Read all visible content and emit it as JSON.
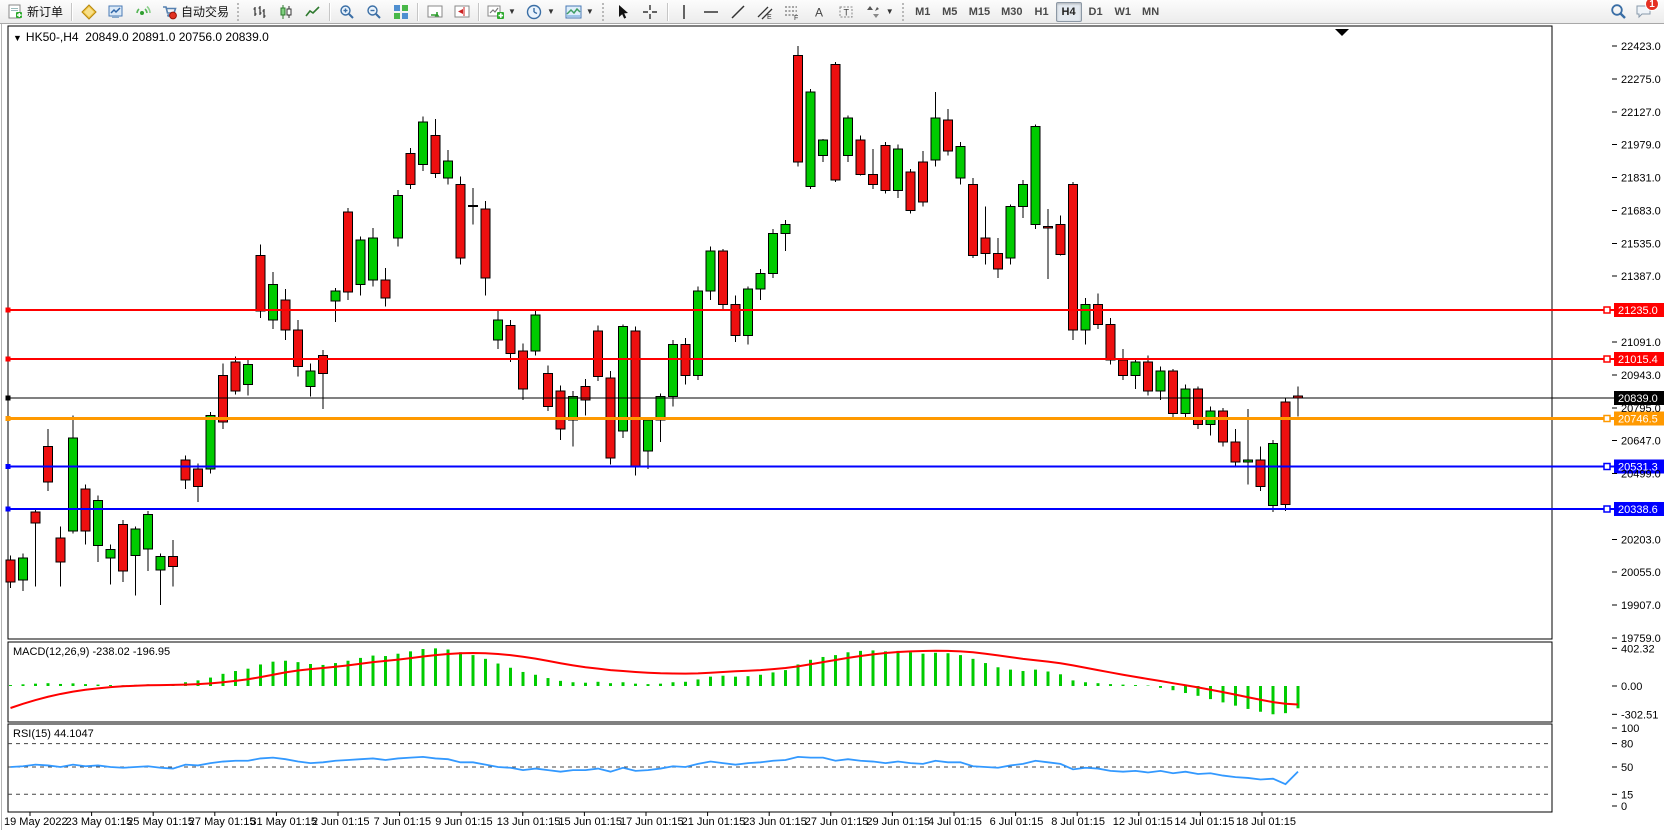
{
  "toolbar": {
    "new_order_label": "新订单",
    "auto_trading_label": "自动交易",
    "timeframes": [
      "M1",
      "M5",
      "M15",
      "M30",
      "H1",
      "H4",
      "D1",
      "W1",
      "MN"
    ],
    "active_timeframe": "H4",
    "notifications_badge": "1"
  },
  "chart": {
    "header_text": "HK50-,H4  20849.0 20891.0 20756.0 20839.0",
    "macd_label": "MACD(12,26,9) -238.02 -196.95",
    "rsi_label": "RSI(15) 44.1047"
  },
  "chart_data": {
    "type": "candlestick",
    "symbol": "HK50-",
    "timeframe": "H4",
    "current_bar": {
      "open": 20849.0,
      "high": 20891.0,
      "low": 20756.0,
      "close": 20839.0
    },
    "colors": {
      "bull": "#00cb00",
      "bear": "#ee1010",
      "wick": "#000000",
      "macd_hist": "#00cb00",
      "macd_signal": "#ff0000",
      "rsi": "#3399ff"
    },
    "ylim": [
      19754,
      22513
    ],
    "price_ticks": [
      22423.0,
      22275.0,
      22127.0,
      21979.0,
      21831.0,
      21683.0,
      21535.0,
      21387.0,
      21091.0,
      20943.0,
      20795.0,
      20647.0,
      20499.0,
      20203.0,
      20055.0,
      19907.0,
      19759.0
    ],
    "horizontal_lines": [
      {
        "price": 21235.0,
        "color": "#ff0000",
        "width": 2,
        "label": "21235.0"
      },
      {
        "price": 21015.4,
        "color": "#ff0000",
        "width": 2,
        "label": "21015.4"
      },
      {
        "price": 20839.0,
        "color": "#000000",
        "width": 1,
        "label": "20839.0"
      },
      {
        "price": 20746.5,
        "color": "#ff9900",
        "width": 3,
        "label": "20746.5"
      },
      {
        "price": 20531.3,
        "color": "#0000ff",
        "width": 2,
        "label": "20531.3"
      },
      {
        "price": 20338.6,
        "color": "#0000ff",
        "width": 2,
        "label": "20338.6"
      }
    ],
    "time_labels": [
      "19 May 2022",
      "23 May 01:15",
      "25 May 01:15",
      "27 May 01:15",
      "31 May 01:15",
      "2 Jun 01:15",
      "7 Jun 01:15",
      "9 Jun 01:15",
      "13 Jun 01:15",
      "15 Jun 01:15",
      "17 Jun 01:15",
      "21 Jun 01:15",
      "23 Jun 01:15",
      "27 Jun 01:15",
      "29 Jun 01:15",
      "4 Jul 01:15",
      "6 Jul 01:15",
      "8 Jul 01:15",
      "12 Jul 01:15",
      "14 Jul 01:15",
      "18 Jul 01:15"
    ],
    "candles": [
      [
        20110,
        20130,
        19985,
        20010
      ],
      [
        20020,
        20140,
        19970,
        20120
      ],
      [
        20326,
        20340,
        19990,
        20277
      ],
      [
        20620,
        20700,
        20420,
        20460
      ],
      [
        20210,
        20260,
        19990,
        20100
      ],
      [
        20240,
        20760,
        20230,
        20660
      ],
      [
        20430,
        20450,
        20180,
        20240
      ],
      [
        20175,
        20400,
        20100,
        20378
      ],
      [
        20120,
        20180,
        20000,
        20157
      ],
      [
        20270,
        20290,
        20010,
        20060
      ],
      [
        20130,
        20260,
        19950,
        20250
      ],
      [
        20160,
        20330,
        20060,
        20315
      ],
      [
        20065,
        20140,
        19907,
        20125
      ],
      [
        20125,
        20200,
        19990,
        20080
      ],
      [
        20560,
        20580,
        20430,
        20470
      ],
      [
        20520,
        20545,
        20370,
        20440
      ],
      [
        20520,
        20775,
        20500,
        20760
      ],
      [
        20940,
        20995,
        20700,
        20730
      ],
      [
        21000,
        21025,
        20855,
        20870
      ],
      [
        20900,
        21015,
        20850,
        20990
      ],
      [
        21480,
        21530,
        21200,
        21230
      ],
      [
        21190,
        21405,
        21150,
        21350
      ],
      [
        21280,
        21330,
        21100,
        21145
      ],
      [
        21145,
        21190,
        20935,
        20980
      ],
      [
        20890,
        20995,
        20845,
        20960
      ],
      [
        21030,
        21055,
        20790,
        20950
      ],
      [
        21275,
        21335,
        21180,
        21320
      ],
      [
        21675,
        21695,
        21280,
        21315
      ],
      [
        21350,
        21565,
        21300,
        21550
      ],
      [
        21370,
        21605,
        21340,
        21560
      ],
      [
        21370,
        21425,
        21250,
        21290
      ],
      [
        21560,
        21775,
        21520,
        21750
      ],
      [
        21940,
        21965,
        21780,
        21800
      ],
      [
        21890,
        22105,
        21860,
        22080
      ],
      [
        22020,
        22095,
        21830,
        21850
      ],
      [
        21830,
        21955,
        21800,
        21905
      ],
      [
        21800,
        21835,
        21440,
        21470
      ],
      [
        21700,
        21785,
        21620,
        21705
      ],
      [
        21690,
        21725,
        21300,
        21380
      ],
      [
        21100,
        21235,
        21060,
        21190
      ],
      [
        21165,
        21190,
        21000,
        21040
      ],
      [
        21050,
        21085,
        20830,
        20880
      ],
      [
        21050,
        21240,
        21030,
        21213
      ],
      [
        20950,
        20985,
        20780,
        20800
      ],
      [
        20870,
        20895,
        20650,
        20700
      ],
      [
        20740,
        20870,
        20620,
        20845
      ],
      [
        20890,
        20925,
        20760,
        20830
      ],
      [
        21140,
        21165,
        20915,
        20935
      ],
      [
        20930,
        20960,
        20540,
        20570
      ],
      [
        20690,
        21170,
        20660,
        21160
      ],
      [
        21140,
        21160,
        20490,
        20530
      ],
      [
        20600,
        20745,
        20520,
        20740
      ],
      [
        20740,
        20860,
        20640,
        20845
      ],
      [
        20845,
        21100,
        20800,
        21080
      ],
      [
        21080,
        21110,
        20900,
        20940
      ],
      [
        20940,
        21340,
        20920,
        21320
      ],
      [
        21320,
        21520,
        21280,
        21500
      ],
      [
        21500,
        21510,
        21230,
        21260
      ],
      [
        21260,
        21300,
        21090,
        21120
      ],
      [
        21120,
        21340,
        21080,
        21330
      ],
      [
        21330,
        21420,
        21280,
        21400
      ],
      [
        21400,
        21600,
        21380,
        21580
      ],
      [
        21580,
        21640,
        21500,
        21620
      ],
      [
        22380,
        22423,
        21880,
        21900
      ],
      [
        21790,
        22230,
        21780,
        22215
      ],
      [
        21930,
        22005,
        21900,
        22000
      ],
      [
        22340,
        22350,
        21810,
        21820
      ],
      [
        21930,
        22110,
        21900,
        22100
      ],
      [
        22000,
        22020,
        21840,
        21845
      ],
      [
        21845,
        21960,
        21780,
        21800
      ],
      [
        21975,
        21990,
        21760,
        21772
      ],
      [
        21772,
        21980,
        21740,
        21960
      ],
      [
        21855,
        21870,
        21670,
        21683
      ],
      [
        21900,
        21950,
        21700,
        21720
      ],
      [
        21910,
        22215,
        21880,
        22100
      ],
      [
        22090,
        22140,
        21930,
        21950
      ],
      [
        21830,
        21990,
        21800,
        21970
      ],
      [
        21800,
        21830,
        21470,
        21480
      ],
      [
        21560,
        21700,
        21440,
        21490
      ],
      [
        21490,
        21560,
        21380,
        21420
      ],
      [
        21470,
        21710,
        21440,
        21700
      ],
      [
        21700,
        21820,
        21650,
        21800
      ],
      [
        21620,
        22070,
        21600,
        22060
      ],
      [
        21610,
        21690,
        21375,
        21605
      ],
      [
        21620,
        21660,
        21480,
        21485
      ],
      [
        21800,
        21810,
        21100,
        21145
      ],
      [
        21145,
        21290,
        21080,
        21260
      ],
      [
        21260,
        21310,
        21150,
        21170
      ],
      [
        21170,
        21200,
        20990,
        21010
      ],
      [
        21010,
        21060,
        20920,
        20940
      ],
      [
        20940,
        21010,
        20880,
        21000
      ],
      [
        21000,
        21030,
        20850,
        20870
      ],
      [
        20870,
        20980,
        20830,
        20960
      ],
      [
        20960,
        20970,
        20750,
        20770
      ],
      [
        20770,
        20900,
        20740,
        20880
      ],
      [
        20880,
        20890,
        20700,
        20720
      ],
      [
        20720,
        20800,
        20670,
        20780
      ],
      [
        20780,
        20795,
        20620,
        20640
      ],
      [
        20640,
        20700,
        20530,
        20550
      ],
      [
        20550,
        20790,
        20450,
        20560
      ],
      [
        20560,
        20620,
        20420,
        20440
      ],
      [
        20355,
        20650,
        20325,
        20635
      ],
      [
        20820,
        20840,
        20330,
        20360
      ],
      [
        20849,
        20891,
        20756,
        20839
      ]
    ],
    "indicators": {
      "macd": {
        "label": "MACD(12,26,9)",
        "values_text": "-238.02 -196.95",
        "axis": [
          "402.32",
          "0.00",
          "-302.51"
        ],
        "histogram": [
          10,
          18,
          25,
          30,
          22,
          28,
          20,
          15,
          10,
          8,
          12,
          18,
          14,
          10,
          40,
          60,
          90,
          130,
          160,
          185,
          230,
          260,
          270,
          255,
          235,
          225,
          245,
          270,
          300,
          325,
          320,
          345,
          370,
          395,
          402,
          390,
          360,
          330,
          290,
          240,
          195,
          150,
          120,
          85,
          55,
          40,
          35,
          45,
          30,
          40,
          25,
          20,
          25,
          40,
          45,
          70,
          100,
          110,
          100,
          105,
          120,
          145,
          170,
          230,
          280,
          310,
          330,
          360,
          375,
          380,
          370,
          375,
          360,
          345,
          355,
          350,
          330,
          290,
          245,
          200,
          175,
          160,
          175,
          155,
          125,
          60,
          40,
          30,
          20,
          15,
          10,
          5,
          -20,
          -45,
          -75,
          -105,
          -140,
          -175,
          -210,
          -245,
          -275,
          -302,
          -290,
          -238
        ],
        "signal": [
          -235,
          -190,
          -150,
          -115,
          -85,
          -60,
          -40,
          -25,
          -12,
          -3,
          3,
          8,
          10,
          12,
          15,
          20,
          28,
          40,
          55,
          72,
          95,
          120,
          145,
          165,
          180,
          192,
          205,
          220,
          238,
          255,
          268,
          282,
          298,
          315,
          330,
          342,
          350,
          352,
          350,
          342,
          330,
          312,
          292,
          268,
          243,
          220,
          200,
          185,
          170,
          160,
          150,
          142,
          136,
          133,
          132,
          135,
          142,
          150,
          157,
          163,
          170,
          180,
          192,
          210,
          232,
          255,
          278,
          300,
          320,
          338,
          352,
          363,
          370,
          374,
          376,
          375,
          370,
          360,
          345,
          327,
          308,
          290,
          275,
          260,
          243,
          220,
          195,
          170,
          145,
          120,
          97,
          75,
          53,
          30,
          8,
          -15,
          -40,
          -65,
          -92,
          -120,
          -147,
          -172,
          -190,
          -197
        ]
      },
      "rsi": {
        "label": "RSI(15)",
        "value_text": "44.1047",
        "axis": [
          "100",
          "80",
          "50",
          "15",
          "0"
        ],
        "levels": [
          80,
          50,
          15
        ],
        "values": [
          50,
          51,
          53,
          52,
          50,
          53,
          51,
          52,
          50,
          49,
          50,
          51,
          49,
          48,
          53,
          52,
          55,
          57,
          58,
          58,
          61,
          62,
          60,
          57,
          55,
          56,
          58,
          59,
          60,
          61,
          59,
          61,
          62,
          63,
          61,
          60,
          56,
          56,
          53,
          50,
          49,
          46,
          48,
          46,
          44,
          46,
          46,
          48,
          44,
          49,
          45,
          46,
          48,
          51,
          50,
          54,
          57,
          55,
          53,
          55,
          56,
          58,
          59,
          63,
          62,
          62,
          58,
          60,
          58,
          57,
          55,
          57,
          55,
          54,
          58,
          56,
          56,
          51,
          50,
          49,
          52,
          54,
          58,
          56,
          54,
          47,
          49,
          48,
          45,
          44,
          45,
          43,
          45,
          42,
          44,
          41,
          42,
          39,
          37,
          36,
          34,
          35,
          28,
          44.1
        ]
      }
    }
  }
}
